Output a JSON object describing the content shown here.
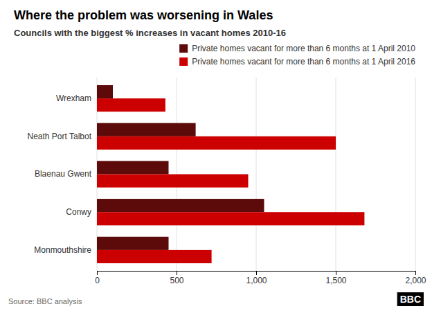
{
  "chart_data": {
    "type": "bar",
    "orientation": "horizontal",
    "title": "Where the problem was worsening in Wales",
    "subtitle": "Councils with the biggest % increases in vacant homes 2010-16",
    "categories": [
      "Wrexham",
      "Neath Port Talbot",
      "Blaenau Gwent",
      "Conwy",
      "Monmouthshire"
    ],
    "series": [
      {
        "name": "Private homes vacant for more than 6 months at 1 April 2010",
        "color": "#5c0a0a",
        "values": [
          100,
          620,
          450,
          1050,
          450
        ]
      },
      {
        "name": "Private homes vacant for more than 6 months at 1 April 2016",
        "color": "#cc0000",
        "values": [
          430,
          1500,
          950,
          1680,
          720
        ]
      }
    ],
    "xlim": [
      0,
      2000
    ],
    "xticks": [
      0,
      500,
      {
        "value": 1000,
        "label": "1,000"
      },
      {
        "value": 1500,
        "label": "1,500"
      },
      {
        "value": 2000,
        "label": "2,000"
      }
    ],
    "grid": true,
    "legend": "upper right",
    "annotations": [
      "Source: BBC analysis",
      "BBC"
    ]
  }
}
